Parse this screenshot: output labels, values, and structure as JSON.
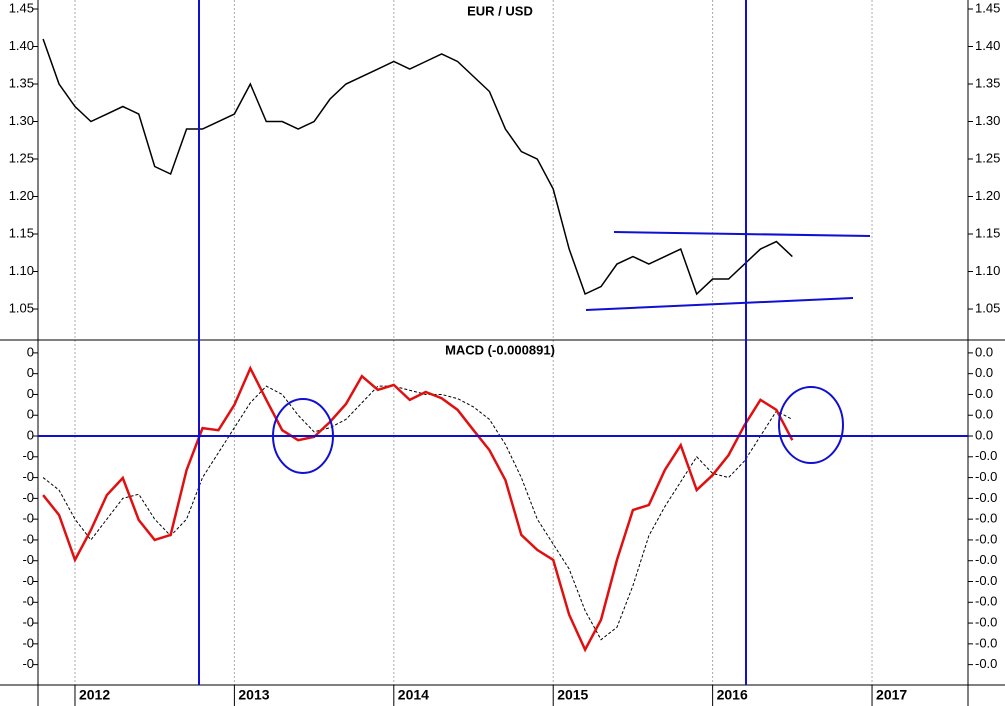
{
  "chart_data": [
    {
      "type": "line",
      "title": "EUR / USD",
      "x": [
        2011.8,
        2011.9,
        2012.0,
        2012.1,
        2012.2,
        2012.3,
        2012.4,
        2012.5,
        2012.6,
        2012.7,
        2012.8,
        2012.9,
        2013.0,
        2013.1,
        2013.2,
        2013.3,
        2013.4,
        2013.5,
        2013.6,
        2013.7,
        2013.8,
        2013.9,
        2014.0,
        2014.1,
        2014.2,
        2014.3,
        2014.4,
        2014.5,
        2014.6,
        2014.7,
        2014.8,
        2014.9,
        2015.0,
        2015.1,
        2015.2,
        2015.3,
        2015.4,
        2015.5,
        2015.6,
        2015.7,
        2015.8,
        2015.9,
        2016.0,
        2016.1,
        2016.2,
        2016.3,
        2016.4,
        2016.5
      ],
      "series": [
        {
          "color": "#000000",
          "values": [
            1.41,
            1.35,
            1.32,
            1.3,
            1.31,
            1.32,
            1.31,
            1.24,
            1.23,
            1.29,
            1.29,
            1.3,
            1.31,
            1.35,
            1.3,
            1.3,
            1.29,
            1.3,
            1.33,
            1.35,
            1.36,
            1.37,
            1.38,
            1.37,
            1.38,
            1.39,
            1.38,
            1.36,
            1.34,
            1.29,
            1.26,
            1.25,
            1.21,
            1.13,
            1.07,
            1.08,
            1.11,
            1.12,
            1.11,
            1.12,
            1.13,
            1.07,
            1.09,
            1.09,
            1.11,
            1.13,
            1.14,
            1.12
          ]
        }
      ],
      "xlim": [
        2011.768,
        2017.602
      ],
      "xticks": [
        2012,
        2013,
        2014,
        2015,
        2016,
        2017
      ],
      "ylim": [
        1.0087,
        1.462
      ],
      "yticks": [
        1.05,
        {
          "value": 1.1,
          "label": "1.10"
        },
        1.15,
        {
          "value": 1.2,
          "label": "1.20"
        },
        1.25,
        {
          "value": 1.3,
          "label": "1.30"
        },
        1.35,
        {
          "value": 1.4,
          "label": "1.40"
        },
        1.45
      ],
      "grid": true
    },
    {
      "type": "line",
      "title": "MACD (-0.000891)",
      "x": [
        2011.8,
        2011.9,
        2012.0,
        2012.1,
        2012.2,
        2012.3,
        2012.4,
        2012.5,
        2012.6,
        2012.7,
        2012.8,
        2012.9,
        2013.0,
        2013.1,
        2013.2,
        2013.3,
        2013.4,
        2013.5,
        2013.6,
        2013.7,
        2013.8,
        2013.9,
        2014.0,
        2014.1,
        2014.2,
        2014.3,
        2014.4,
        2014.5,
        2014.6,
        2014.7,
        2014.8,
        2014.9,
        2015.0,
        2015.1,
        2015.2,
        2015.3,
        2015.4,
        2015.5,
        2015.6,
        2015.7,
        2015.8,
        2015.9,
        2016.0,
        2016.1,
        2016.2,
        2016.3,
        2016.4,
        2016.5
      ],
      "series": [
        {
          "color": "#000000",
          "dashed": true,
          "values": [
            -0.01,
            -0.013,
            -0.02,
            -0.025,
            -0.02,
            -0.015,
            -0.014,
            -0.02,
            -0.024,
            -0.02,
            -0.01,
            -0.004,
            0.002,
            0.008,
            0.012,
            0.01,
            0.005,
            0.001,
            0.002,
            0.004,
            0.008,
            0.012,
            0.012,
            0.011,
            0.01,
            0.01,
            0.009,
            0.007,
            0.004,
            -0.002,
            -0.01,
            -0.02,
            -0.026,
            -0.032,
            -0.042,
            -0.049,
            -0.046,
            -0.036,
            -0.024,
            -0.017,
            -0.011,
            -0.005,
            -0.009,
            -0.01,
            -0.006,
            0.0,
            0.006,
            0.004
          ]
        },
        {
          "color": "#e01010",
          "dashed": false,
          "values": [
            -0.0142,
            -0.019,
            -0.0298,
            -0.0226,
            -0.0142,
            -0.0101,
            -0.0202,
            -0.025,
            -0.0238,
            -0.0082,
            0.0019,
            0.0014,
            0.0075,
            0.0163,
            0.0087,
            0.0014,
            -0.001,
            -0.0002,
            0.0034,
            0.0077,
            0.0144,
            0.0111,
            0.0123,
            0.0087,
            0.0106,
            0.0091,
            0.0063,
            0.0014,
            -0.0034,
            -0.0106,
            -0.0238,
            -0.0274,
            -0.0298,
            -0.043,
            -0.0514,
            -0.0442,
            -0.0298,
            -0.0178,
            -0.0166,
            -0.0082,
            -0.0022,
            -0.013,
            -0.0094,
            -0.0046,
            0.0026,
            0.0087,
            0.0063,
            -0.001
          ]
        }
      ],
      "xlim": [
        2011.768,
        2017.602
      ],
      "xticks": [
        2012,
        2013,
        2014,
        2015,
        2016,
        2017
      ],
      "ylim": [
        -0.0599,
        0.0231
      ],
      "yticks": [
        {
          "value": 0.02,
          "label": "0"
        },
        {
          "value": 0.015,
          "label": "0"
        },
        {
          "value": 0.01,
          "label": "0"
        },
        {
          "value": 0.005,
          "label": "0"
        },
        0,
        {
          "value": -0.005,
          "label": "-0"
        },
        {
          "value": -0.01,
          "label": "-0"
        },
        {
          "value": -0.015,
          "label": "-0"
        },
        {
          "value": -0.02,
          "label": "-0"
        },
        {
          "value": -0.025,
          "label": "-0"
        },
        {
          "value": -0.03,
          "label": "-0"
        },
        {
          "value": -0.035,
          "label": "-0"
        },
        {
          "value": -0.04,
          "label": "-0"
        },
        {
          "value": -0.045,
          "label": "-0"
        },
        {
          "value": -0.05,
          "label": "-0"
        },
        {
          "value": -0.055,
          "label": "-0"
        }
      ],
      "y2lim": [
        -0.0599,
        0.0231
      ],
      "y2ticks": [
        {
          "value": 0.02,
          "label": "0.0"
        },
        {
          "value": 0.015,
          "label": "0.0"
        },
        {
          "value": 0.01,
          "label": "0.0"
        },
        {
          "value": 0.005,
          "label": "0.0"
        },
        {
          "value": 0,
          "label": "0.0"
        },
        {
          "value": -0.005,
          "label": "-0.0"
        },
        {
          "value": -0.01,
          "label": "-0.0"
        },
        {
          "value": -0.015,
          "label": "-0.0"
        },
        {
          "value": -0.02,
          "label": "-0.0"
        },
        {
          "value": -0.025,
          "label": "-0.0"
        },
        {
          "value": -0.03,
          "label": "-0.0"
        },
        {
          "value": -0.035,
          "label": "-0.0"
        },
        {
          "value": -0.04,
          "label": "-0.0"
        },
        {
          "value": -0.045,
          "label": "-0.0"
        },
        {
          "value": -0.05,
          "label": "-0.0"
        },
        {
          "value": -0.055,
          "label": "-0.0"
        }
      ],
      "grid": true
    }
  ]
}
